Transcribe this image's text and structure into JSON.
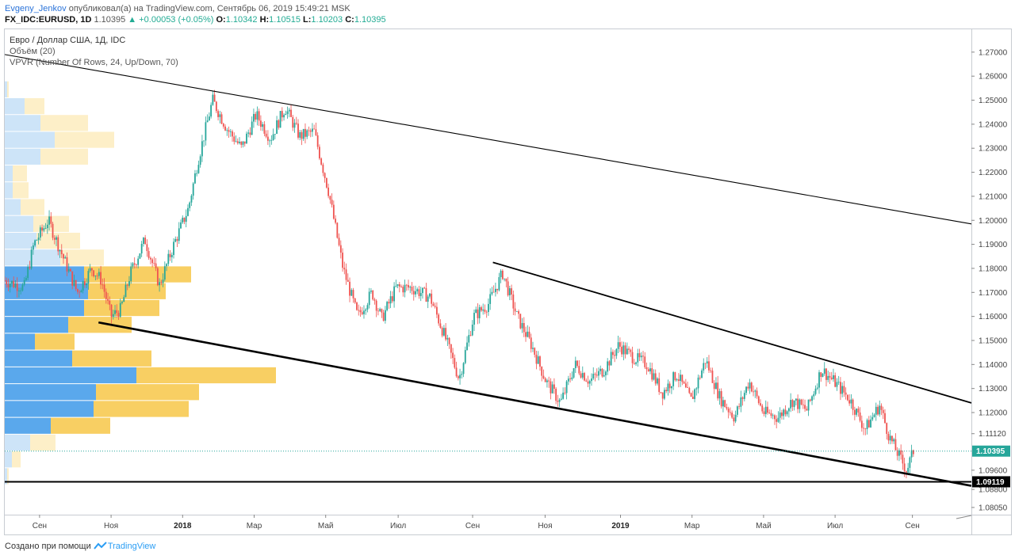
{
  "header": {
    "author": "Evgeny_Jenkov",
    "published_text": "опубликовал(а) на TradingView.com, Сентябрь 06, 2019 15:49:21 MSK",
    "symbol": "FX_IDC:EURUSD, 1D",
    "last": "1.10395",
    "change": "▲ +0.00053 (+0.05%)",
    "open_label": "O:",
    "open": "1.10342",
    "high_label": "H:",
    "high": "1.10515",
    "low_label": "L:",
    "low": "1.10203",
    "close_label": "C:",
    "close": "1.10395"
  },
  "legend": {
    "title": "Евро / Доллар США, 1Д, IDC",
    "volume": "Объём (20)",
    "vpvr": "VPVR (Number Of Rows, 24, Up/Down, 70)"
  },
  "footer": {
    "created": "Создано при помощи",
    "brand": "TradingView",
    "logo_icon": "tradingview-logo-icon"
  },
  "colors": {
    "up": "#26a69a",
    "down": "#ef5350",
    "vp_up": "#5aa8ec",
    "vp_down": "#f8cf63",
    "vp_up_light": "#cde4f8",
    "vp_down_light": "#fdefc8",
    "price_tag": "#26a69a",
    "level_tag": "#000000",
    "trend": "#000000"
  },
  "chart_data": {
    "type": "candlestick",
    "ylim": [
      1.0775,
      1.2795
    ],
    "y_ticks": [
      "1.27000",
      "1.26000",
      "1.25000",
      "1.24000",
      "1.23000",
      "1.22000",
      "1.21000",
      "1.20000",
      "1.19000",
      "1.18000",
      "1.17000",
      "1.16000",
      "1.15000",
      "1.14000",
      "1.13000",
      "1.12000",
      "1.11120",
      "1.09600",
      "1.08800",
      "1.08050"
    ],
    "x_ticks": [
      {
        "label": "Сен",
        "pos": 0.036,
        "bold": false
      },
      {
        "label": "Ноя",
        "pos": 0.11,
        "bold": false
      },
      {
        "label": "2018",
        "pos": 0.184,
        "bold": true
      },
      {
        "label": "Мар",
        "pos": 0.258,
        "bold": false
      },
      {
        "label": "Май",
        "pos": 0.332,
        "bold": false
      },
      {
        "label": "Июл",
        "pos": 0.407,
        "bold": false
      },
      {
        "label": "Сен",
        "pos": 0.484,
        "bold": false
      },
      {
        "label": "Ноя",
        "pos": 0.559,
        "bold": false
      },
      {
        "label": "2019",
        "pos": 0.637,
        "bold": true
      },
      {
        "label": "Мар",
        "pos": 0.711,
        "bold": false
      },
      {
        "label": "Май",
        "pos": 0.785,
        "bold": false
      },
      {
        "label": "Июл",
        "pos": 0.859,
        "bold": false
      },
      {
        "label": "Сен",
        "pos": 0.939,
        "bold": false
      }
    ],
    "current_price": "1.10395",
    "current_price_value": 1.10395,
    "support_level": "1.09119",
    "support_level_value": 1.09119,
    "price_path": [
      [
        0.0,
        1.175
      ],
      [
        0.02,
        1.172
      ],
      [
        0.03,
        1.19
      ],
      [
        0.045,
        1.2
      ],
      [
        0.06,
        1.185
      ],
      [
        0.075,
        1.17
      ],
      [
        0.09,
        1.18
      ],
      [
        0.1,
        1.175
      ],
      [
        0.11,
        1.16
      ],
      [
        0.12,
        1.163
      ],
      [
        0.13,
        1.178
      ],
      [
        0.145,
        1.192
      ],
      [
        0.16,
        1.173
      ],
      [
        0.175,
        1.19
      ],
      [
        0.19,
        1.205
      ],
      [
        0.2,
        1.225
      ],
      [
        0.215,
        1.25
      ],
      [
        0.23,
        1.238
      ],
      [
        0.245,
        1.23
      ],
      [
        0.26,
        1.244
      ],
      [
        0.275,
        1.234
      ],
      [
        0.29,
        1.247
      ],
      [
        0.305,
        1.235
      ],
      [
        0.32,
        1.237
      ],
      [
        0.335,
        1.212
      ],
      [
        0.35,
        1.18
      ],
      [
        0.365,
        1.16
      ],
      [
        0.38,
        1.17
      ],
      [
        0.39,
        1.159
      ],
      [
        0.405,
        1.172
      ],
      [
        0.42,
        1.172
      ],
      [
        0.44,
        1.168
      ],
      [
        0.455,
        1.152
      ],
      [
        0.47,
        1.134
      ],
      [
        0.485,
        1.16
      ],
      [
        0.5,
        1.165
      ],
      [
        0.515,
        1.178
      ],
      [
        0.53,
        1.16
      ],
      [
        0.545,
        1.148
      ],
      [
        0.56,
        1.133
      ],
      [
        0.575,
        1.124
      ],
      [
        0.59,
        1.14
      ],
      [
        0.605,
        1.133
      ],
      [
        0.62,
        1.138
      ],
      [
        0.635,
        1.148
      ],
      [
        0.65,
        1.143
      ],
      [
        0.665,
        1.14
      ],
      [
        0.68,
        1.128
      ],
      [
        0.695,
        1.136
      ],
      [
        0.71,
        1.125
      ],
      [
        0.725,
        1.142
      ],
      [
        0.74,
        1.126
      ],
      [
        0.755,
        1.118
      ],
      [
        0.77,
        1.133
      ],
      [
        0.785,
        1.12
      ],
      [
        0.8,
        1.118
      ],
      [
        0.815,
        1.125
      ],
      [
        0.83,
        1.121
      ],
      [
        0.845,
        1.138
      ],
      [
        0.86,
        1.132
      ],
      [
        0.875,
        1.125
      ],
      [
        0.89,
        1.113
      ],
      [
        0.905,
        1.123
      ],
      [
        0.915,
        1.11
      ],
      [
        0.925,
        1.102
      ],
      [
        0.933,
        1.096
      ],
      [
        0.94,
        1.104
      ]
    ],
    "volume_profile": [
      {
        "price": 1.2545,
        "up": 3,
        "down": 2,
        "light": true
      },
      {
        "price": 1.2475,
        "up": 25,
        "down": 25,
        "light": true
      },
      {
        "price": 1.2405,
        "up": 45,
        "down": 60,
        "light": true
      },
      {
        "price": 1.2335,
        "up": 63,
        "down": 75,
        "light": true
      },
      {
        "price": 1.2265,
        "up": 45,
        "down": 60,
        "light": true
      },
      {
        "price": 1.2195,
        "up": 10,
        "down": 18,
        "light": true
      },
      {
        "price": 1.2125,
        "up": 10,
        "down": 20,
        "light": true
      },
      {
        "price": 1.2055,
        "up": 20,
        "down": 30,
        "light": true
      },
      {
        "price": 1.1985,
        "up": 36,
        "down": 45,
        "light": true
      },
      {
        "price": 1.1915,
        "up": 40,
        "down": 55,
        "light": true
      },
      {
        "price": 1.1845,
        "up": 70,
        "down": 55,
        "light": true
      },
      {
        "price": 1.1775,
        "up": 100,
        "down": 135,
        "light": false
      },
      {
        "price": 1.1705,
        "up": 105,
        "down": 98,
        "light": false
      },
      {
        "price": 1.1635,
        "up": 100,
        "down": 95,
        "light": false
      },
      {
        "price": 1.1565,
        "up": 80,
        "down": 80,
        "light": false
      },
      {
        "price": 1.1495,
        "up": 38,
        "down": 50,
        "light": false
      },
      {
        "price": 1.1425,
        "up": 85,
        "down": 100,
        "light": false
      },
      {
        "price": 1.1355,
        "up": 166,
        "down": 176,
        "light": false
      },
      {
        "price": 1.1285,
        "up": 115,
        "down": 130,
        "light": false
      },
      {
        "price": 1.1215,
        "up": 112,
        "down": 120,
        "light": false
      },
      {
        "price": 1.1145,
        "up": 58,
        "down": 75,
        "light": false
      },
      {
        "price": 1.1075,
        "up": 32,
        "down": 32,
        "light": true
      },
      {
        "price": 1.1005,
        "up": 9,
        "down": 11,
        "light": true
      },
      {
        "price": 1.0935,
        "up": 3,
        "down": 2,
        "light": true
      }
    ],
    "trend_lines": [
      {
        "x1": 0.0,
        "y1": 1.269,
        "x2": 1.0,
        "y2": 1.1985,
        "width": 1.1
      },
      {
        "x1": 0.505,
        "y1": 1.1825,
        "x2": 1.0,
        "y2": 1.124,
        "width": 1.8
      },
      {
        "x1": 0.097,
        "y1": 1.1575,
        "x2": 1.0,
        "y2": 1.0895,
        "width": 2.6
      },
      {
        "x1": 0.0,
        "y1": 1.09119,
        "x2": 1.0,
        "y2": 1.09119,
        "width": 2.0
      }
    ]
  }
}
